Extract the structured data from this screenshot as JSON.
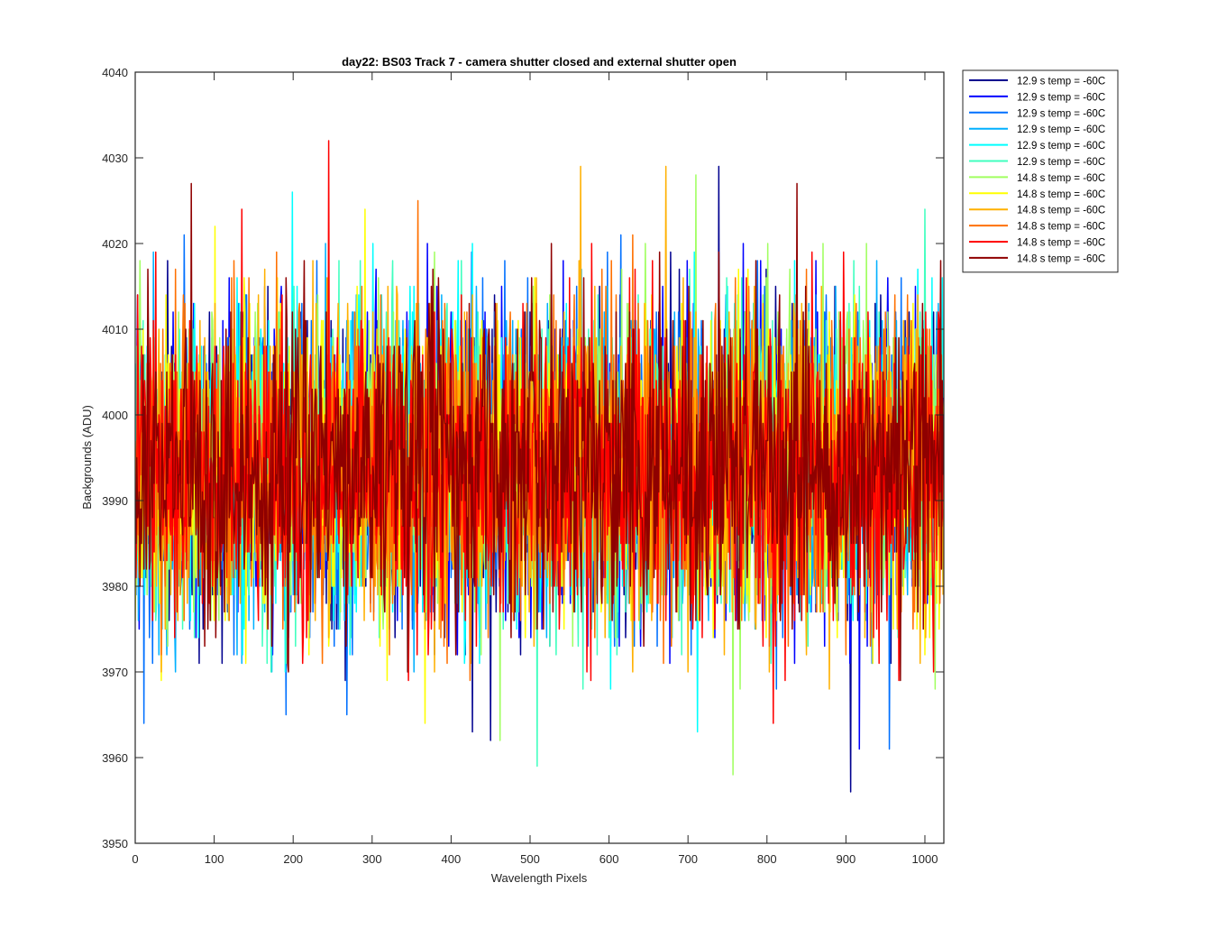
{
  "chart_data": {
    "type": "line",
    "title": "day22: BS03  Track 7 - camera shutter closed and external shutter open",
    "xlabel": "Wavelength Pixels",
    "ylabel": "Backgrounds (ADU)",
    "xlim": [
      0,
      1024
    ],
    "ylim": [
      3950,
      4040
    ],
    "xticks": [
      0,
      100,
      200,
      300,
      400,
      500,
      600,
      700,
      800,
      900,
      1000
    ],
    "yticks": [
      3950,
      3960,
      3970,
      3980,
      3990,
      4000,
      4010,
      4020,
      4030,
      4040
    ],
    "grid": false,
    "legend_position": "outside-top-right",
    "x": {
      "start": 0,
      "end": 1023,
      "step": 1
    },
    "series_summary": {
      "mean": 3994,
      "typical_min": 3970,
      "typical_max": 4020
    },
    "series": [
      {
        "name": "12.9 s temp = -60C",
        "color": "#00008f",
        "extremes": [
          [
            739,
            4029
          ],
          [
            906,
            3956
          ],
          [
            427,
            3963
          ],
          [
            450,
            3962
          ]
        ]
      },
      {
        "name": "12.9 s temp = -60C",
        "color": "#0000ff",
        "extremes": [
          [
            370,
            4020
          ],
          [
            917,
            3961
          ],
          [
            305,
            4017
          ]
        ]
      },
      {
        "name": "12.9 s temp = -60C",
        "color": "#0070ff",
        "extremes": [
          [
            191,
            3965
          ],
          [
            955,
            3961
          ],
          [
            11,
            3964
          ],
          [
            268,
            3965
          ]
        ]
      },
      {
        "name": "12.9 s temp = -60C",
        "color": "#00b0ff",
        "extremes": [
          [
            1017,
            4013
          ],
          [
            353,
            3970
          ]
        ]
      },
      {
        "name": "12.9 s temp = -60C",
        "color": "#00ffff",
        "extremes": [
          [
            199,
            4026
          ],
          [
            712,
            3963
          ],
          [
            129,
            4016
          ]
        ]
      },
      {
        "name": "12.9 s temp = -60C",
        "color": "#40ffbf",
        "extremes": [
          [
            509,
            3959
          ],
          [
            1000,
            4024
          ],
          [
            285,
            4018
          ]
        ]
      },
      {
        "name": "14.8 s temp = -60C",
        "color": "#a0ff60",
        "extremes": [
          [
            757,
            3958
          ],
          [
            462,
            3962
          ],
          [
            710,
            4028
          ]
        ]
      },
      {
        "name": "14.8 s temp = -60C",
        "color": "#ffff00",
        "extremes": [
          [
            367,
            3964
          ],
          [
            291,
            4024
          ],
          [
            101,
            4022
          ]
        ]
      },
      {
        "name": "14.8 s temp = -60C",
        "color": "#ffb000",
        "extremes": [
          [
            564,
            4029
          ],
          [
            672,
            4029
          ],
          [
            225,
            4018
          ]
        ]
      },
      {
        "name": "14.8 s temp = -60C",
        "color": "#ff7000",
        "extremes": [
          [
            358,
            4025
          ],
          [
            630,
            4021
          ],
          [
            900,
            3972
          ]
        ]
      },
      {
        "name": "14.8 s temp = -60C",
        "color": "#ff0000",
        "extremes": [
          [
            245,
            4032
          ],
          [
            135,
            4024
          ],
          [
            808,
            3964
          ]
        ]
      },
      {
        "name": "14.8 s temp = -60C",
        "color": "#8f0000",
        "extremes": [
          [
            71,
            4027
          ],
          [
            838,
            4027
          ],
          [
            191,
            4016
          ]
        ]
      }
    ]
  }
}
